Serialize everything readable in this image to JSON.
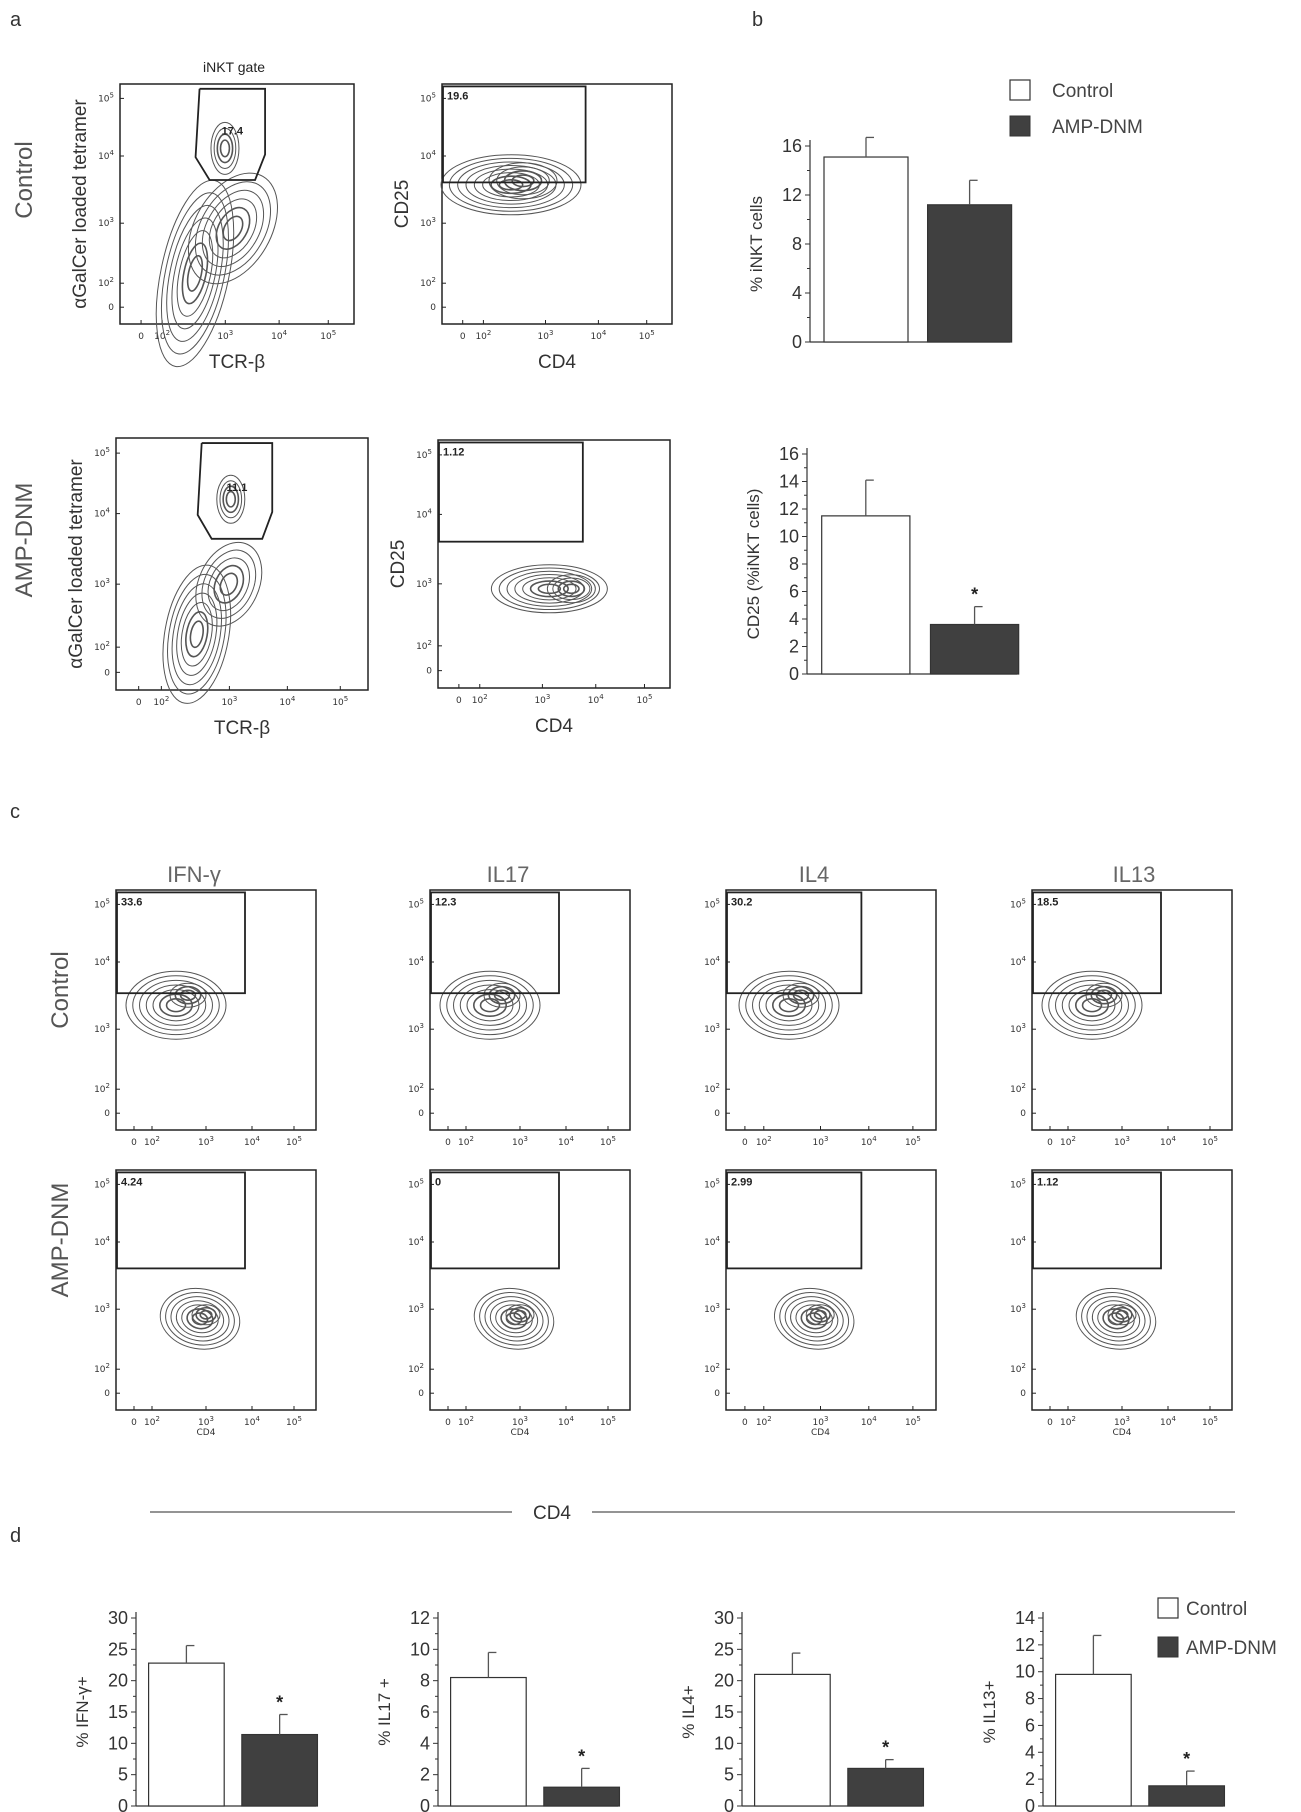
{
  "panels": {
    "a": "a",
    "b": "b",
    "c": "c",
    "d": "d"
  },
  "panel_a": {
    "gate_title": "iNKT gate",
    "rows": [
      {
        "label": "Control",
        "left": {
          "ylabel": "αGalCer loaded tetramer",
          "xlabel": "TCR-β",
          "gate_value": "17.4"
        },
        "right": {
          "ylabel": "CD25",
          "xlabel": "CD4",
          "gate_value": "19.6"
        }
      },
      {
        "label": "AMP-DNM",
        "left": {
          "ylabel": "αGalCer loaded tetramer",
          "xlabel": "TCR-β",
          "gate_value": "11.1"
        },
        "right": {
          "ylabel": "CD25",
          "xlabel": "CD4",
          "gate_value": "1.12"
        }
      }
    ]
  },
  "flow_axis": {
    "ticks": [
      {
        "base": "10",
        "exp": "5"
      },
      {
        "base": "10",
        "exp": "4"
      },
      {
        "base": "10",
        "exp": "3"
      },
      {
        "base": "10",
        "exp": "2"
      },
      {
        "base": "0",
        "exp": ""
      }
    ]
  },
  "panel_c": {
    "columns": [
      "IFN-γ",
      "IL17",
      "IL4",
      "IL13"
    ],
    "rows": [
      {
        "label": "Control",
        "values": [
          "33.6",
          "12.3",
          "30.2",
          "18.5"
        ]
      },
      {
        "label": "AMP-DNM",
        "values": [
          "4.24",
          "0",
          "2.99",
          "1.12"
        ]
      }
    ],
    "mini_xlabel": "CD4",
    "axis_label": "CD4"
  },
  "legend": {
    "control": "Control",
    "treated": "AMP-DNM"
  },
  "colors": {
    "control": "#ffffff",
    "treated": "#404040",
    "contour": "#555555",
    "gate": "#222222"
  },
  "chart_data": [
    {
      "type": "bar",
      "ylabel": "% iNKT cells",
      "categories": [
        "Control",
        "AMP-DNM"
      ],
      "values": [
        15.1,
        11.2
      ],
      "errors": [
        1.6,
        2.0
      ],
      "ylim": [
        0,
        16
      ],
      "yticks": [
        0,
        4,
        8,
        12,
        16
      ],
      "significant": [
        false,
        false
      ]
    },
    {
      "type": "bar",
      "ylabel": "CD25 (%iNKT cells)",
      "categories": [
        "Control",
        "AMP-DNM"
      ],
      "values": [
        11.5,
        3.6
      ],
      "errors": [
        2.6,
        1.3
      ],
      "ylim": [
        0,
        16
      ],
      "yticks": [
        0,
        2,
        4,
        6,
        8,
        10,
        12,
        14,
        16
      ],
      "significant": [
        false,
        true
      ]
    },
    {
      "type": "bar",
      "ylabel": "% IFN-γ+",
      "categories": [
        "Control",
        "AMP-DNM"
      ],
      "values": [
        22.8,
        11.4
      ],
      "errors": [
        2.8,
        3.2
      ],
      "ylim": [
        0,
        30
      ],
      "yticks": [
        0,
        5,
        10,
        15,
        20,
        25,
        30
      ],
      "significant": [
        false,
        true
      ]
    },
    {
      "type": "bar",
      "ylabel": "% IL17 +",
      "categories": [
        "Control",
        "AMP-DNM"
      ],
      "values": [
        8.2,
        1.2
      ],
      "errors": [
        1.6,
        1.2
      ],
      "ylim": [
        0,
        12
      ],
      "yticks": [
        0,
        2,
        4,
        6,
        8,
        10,
        12
      ],
      "significant": [
        false,
        true
      ]
    },
    {
      "type": "bar",
      "ylabel": "% IL4+",
      "categories": [
        "Control",
        "AMP-DNM"
      ],
      "values": [
        21.0,
        6.0
      ],
      "errors": [
        3.4,
        1.4
      ],
      "ylim": [
        0,
        30
      ],
      "yticks": [
        0,
        5,
        10,
        15,
        20,
        25,
        30
      ],
      "significant": [
        false,
        true
      ]
    },
    {
      "type": "bar",
      "ylabel": "% IL13+",
      "categories": [
        "Control",
        "AMP-DNM"
      ],
      "values": [
        9.8,
        1.5
      ],
      "errors": [
        2.9,
        1.1
      ],
      "ylim": [
        0,
        14
      ],
      "yticks": [
        0,
        2,
        4,
        6,
        8,
        10,
        12,
        14
      ],
      "significant": [
        false,
        true
      ]
    }
  ]
}
